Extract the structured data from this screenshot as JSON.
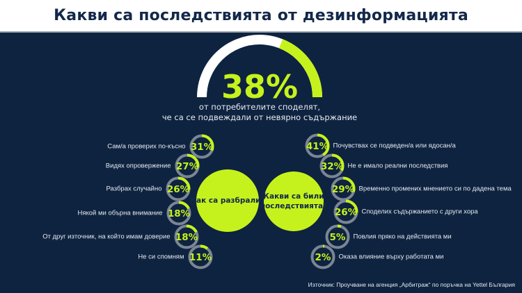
{
  "title": "Какви са последствията от дезинформацията",
  "colors": {
    "background": "#0e2340",
    "accent": "#c5f21c",
    "ring": "#7b8595",
    "title_text": "#13284a"
  },
  "chart_data": {
    "type": "infographic-gauges",
    "headline": {
      "value": 38,
      "label": "38%",
      "text_line1": "от потребителите споделят,",
      "text_line2": "че са се подвеждали от невярно съдържание"
    },
    "groups": [
      {
        "title": "Как са разбрали?",
        "items": [
          {
            "label": "Сам/а проверих по-късно",
            "value": 31,
            "text": "31%"
          },
          {
            "label": "Видях опровержение",
            "value": 27,
            "text": "27%"
          },
          {
            "label": "Разбрах случайно",
            "value": 26,
            "text": "26%"
          },
          {
            "label": "Някой ми обърна внимание",
            "value": 18,
            "text": "18%"
          },
          {
            "label": "От друг източник, на който имам доверие",
            "value": 18,
            "text": "18%"
          },
          {
            "label": "Не си спомням",
            "value": 11,
            "text": "11%"
          }
        ]
      },
      {
        "title_line1": "Какви са били",
        "title_line2": "последствията?",
        "items": [
          {
            "label": "Почувствах се подведен/а или ядосан/а",
            "value": 41,
            "text": "41%"
          },
          {
            "label": "Не е имало реални последствия",
            "value": 32,
            "text": "32%"
          },
          {
            "label": "Временно промених мнението си по дадена тема",
            "value": 29,
            "text": "29%"
          },
          {
            "label": "Споделих съдържанието с други хора",
            "value": 26,
            "text": "26%"
          },
          {
            "label": "Повлия пряко на действията ми",
            "value": 5,
            "text": "5%"
          },
          {
            "label": "Оказа влияние върху работата ми",
            "value": 2,
            "text": "2%"
          }
        ]
      }
    ]
  },
  "source": "Източник: Проучване на агенция „Арбитраж“ по поръчка на Yettel България"
}
